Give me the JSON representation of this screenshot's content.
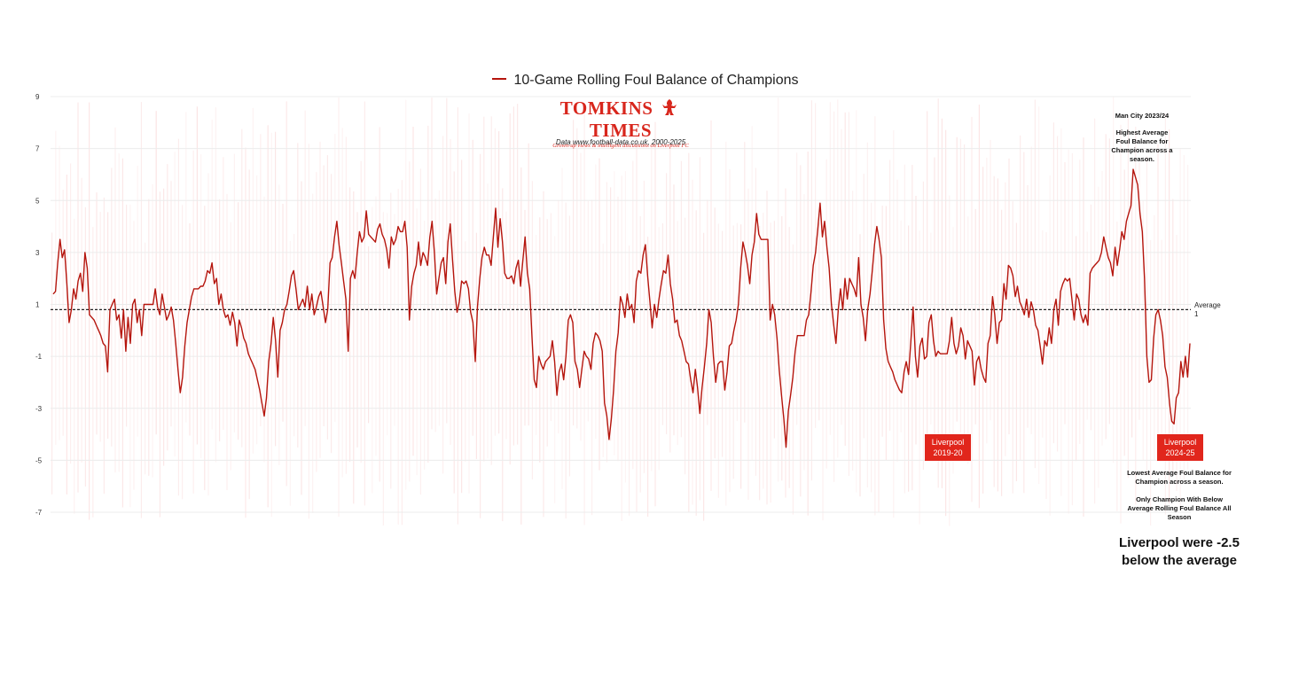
{
  "chart_data": {
    "type": "line",
    "legend": "10-Game Rolling Foul Balance of Champions",
    "ylim": [
      -7.5,
      9
    ],
    "yticks": [
      9,
      7,
      5,
      3,
      1,
      -1,
      -3,
      -5,
      -7
    ],
    "average": 0.8,
    "average_label": "Average",
    "average_value_label": "1",
    "colors": {
      "line": "#b5150d",
      "bars": "#fbe2e2",
      "badge": "#e1261c"
    },
    "series": [
      {
        "values": [
          1.4,
          1.5,
          2.6,
          3.5,
          2.8,
          3.1,
          1.8,
          0.3,
          0.8,
          1.6,
          1.2,
          1.9,
          2.2,
          1.5,
          3.0,
          2.4,
          0.6,
          0.5,
          0.4,
          0.2,
          0.0,
          -0.2,
          -0.5,
          -0.6,
          -1.6,
          0.8,
          1.0,
          1.2,
          0.4,
          0.6,
          -0.3,
          0.8,
          -0.8,
          0.5,
          -0.5,
          1.0,
          1.2,
          0.3,
          0.8,
          -0.2,
          1.0,
          1.0,
          1.0,
          1.0,
          1.0,
          1.6,
          0.9,
          0.6,
          1.4,
          0.9,
          0.4,
          0.6,
          0.9,
          0.4,
          -0.5,
          -1.5,
          -2.4,
          -1.8,
          -0.6,
          0.3,
          0.8,
          1.3,
          1.6,
          1.6,
          1.6,
          1.7,
          1.7,
          1.9,
          2.3,
          2.2,
          2.6,
          1.8,
          2.0,
          1.0,
          1.4,
          0.8,
          0.5,
          0.6,
          0.2,
          0.7,
          0.3,
          -0.6,
          0.4,
          0.1,
          -0.3,
          -0.5,
          -0.9,
          -1.1,
          -1.3,
          -1.5,
          -1.9,
          -2.3,
          -2.8,
          -3.3,
          -2.6,
          -1.2,
          -0.5,
          0.5,
          -0.4,
          -1.8,
          0.0,
          0.3,
          0.8,
          1.0,
          1.5,
          2.1,
          2.3,
          1.6,
          0.8,
          1.0,
          1.2,
          0.9,
          1.7,
          0.8,
          1.4,
          0.6,
          0.9,
          1.3,
          1.5,
          0.9,
          0.3,
          0.8,
          2.6,
          2.8,
          3.6,
          4.2,
          3.3,
          2.6,
          1.9,
          1.2,
          -0.8,
          2.0,
          2.3,
          2.0,
          3.0,
          3.8,
          3.4,
          3.6,
          4.6,
          3.7,
          3.6,
          3.5,
          3.4,
          3.9,
          4.1,
          3.7,
          3.5,
          3.1,
          2.4,
          3.6,
          3.3,
          3.5,
          4.0,
          3.8,
          3.8,
          4.2,
          3.2,
          0.4,
          1.7,
          2.2,
          2.5,
          3.4,
          2.5,
          3.0,
          2.8,
          2.5,
          3.6,
          4.2,
          3.0,
          1.4,
          2.0,
          2.6,
          2.8,
          1.8,
          3.4,
          4.1,
          2.7,
          1.5,
          0.7,
          1.1,
          1.9,
          1.8,
          1.9,
          1.6,
          0.7,
          0.3,
          -1.2,
          0.9,
          2.0,
          2.8,
          3.2,
          2.9,
          2.9,
          2.5,
          3.6,
          4.7,
          3.2,
          4.3,
          3.4,
          2.2,
          2.0,
          2.0,
          2.1,
          1.8,
          2.4,
          2.7,
          1.7,
          2.7,
          3.6,
          2.2,
          1.6,
          -0.2,
          -1.9,
          -2.2,
          -1.0,
          -1.3,
          -1.5,
          -1.2,
          -1.1,
          -1.0,
          -0.4,
          -1.2,
          -2.5,
          -1.6,
          -1.3,
          -1.9,
          -1.0,
          0.4,
          0.6,
          0.3,
          -1.2,
          -1.5,
          -2.2,
          -1.5,
          -0.8,
          -1.0,
          -1.1,
          -1.5,
          -0.5,
          -0.1,
          -0.2,
          -0.4,
          -0.8,
          -2.8,
          -3.3,
          -4.2,
          -3.4,
          -2.3,
          -0.8,
          -0.1,
          1.3,
          1.0,
          0.5,
          1.4,
          0.8,
          1.0,
          0.3,
          1.9,
          2.3,
          2.2,
          2.9,
          3.3,
          2.1,
          1.1,
          0.1,
          1.0,
          0.5,
          1.2,
          1.8,
          2.3,
          2.2,
          2.9,
          1.8,
          1.2,
          0.3,
          0.4,
          -0.2,
          -0.4,
          -0.8,
          -1.2,
          -1.3,
          -1.9,
          -2.4,
          -1.5,
          -2.2,
          -3.2,
          -2.2,
          -1.4,
          -0.5,
          0.8,
          0.3,
          -1.0,
          -2.0,
          -1.3,
          -1.2,
          -1.2,
          -2.3,
          -1.6,
          -0.6,
          -0.5,
          0.0,
          0.4,
          1.0,
          2.4,
          3.4,
          3.0,
          2.5,
          1.8,
          2.9,
          3.4,
          4.5,
          3.7,
          3.5,
          3.5,
          3.5,
          3.5,
          0.4,
          1.0,
          0.6,
          -0.3,
          -1.5,
          -2.5,
          -3.4,
          -4.5,
          -3.1,
          -2.5,
          -1.8,
          -0.8,
          -0.2,
          -0.2,
          -0.2,
          -0.2,
          0.4,
          0.6,
          1.5,
          2.5,
          3.0,
          3.9,
          4.9,
          3.6,
          4.2,
          3.2,
          2.4,
          1.0,
          0.2,
          -0.5,
          0.8,
          1.6,
          0.8,
          2.0,
          1.2,
          2.0,
          1.8,
          1.6,
          1.3,
          2.8,
          1.0,
          0.5,
          -0.4,
          0.8,
          1.4,
          2.3,
          3.3,
          4.0,
          3.5,
          2.8,
          0.4,
          -0.7,
          -1.2,
          -1.4,
          -1.6,
          -1.9,
          -2.1,
          -2.3,
          -2.4,
          -1.6,
          -1.2,
          -1.7,
          -0.4,
          0.9,
          -1.0,
          -1.8,
          -0.6,
          -0.3,
          -1.1,
          -1.0,
          0.3,
          0.6,
          -0.4,
          -1.0,
          -0.8,
          -0.9,
          -0.9,
          -0.9,
          -0.9,
          -0.4,
          0.5,
          -0.5,
          -0.9,
          -0.6,
          0.1,
          -0.2,
          -1.1,
          -0.4,
          -0.6,
          -0.8,
          -2.1,
          -1.2,
          -1.0,
          -1.5,
          -1.8,
          -2.0,
          -0.5,
          -0.2,
          1.3,
          0.6,
          -0.5,
          0.3,
          0.4,
          1.8,
          1.2,
          2.5,
          2.4,
          2.1,
          1.3,
          1.7,
          1.1,
          0.9,
          0.6,
          1.2,
          0.5,
          1.1,
          0.8,
          0.2,
          0.0,
          -0.6,
          -1.3,
          -0.4,
          -0.6,
          0.1,
          -0.5,
          0.8,
          1.2,
          0.2,
          1.5,
          1.8,
          2.0,
          1.9,
          2.0,
          1.2,
          0.4,
          1.4,
          1.2,
          0.6,
          0.3,
          0.6,
          0.2,
          2.2,
          2.4,
          2.5,
          2.6,
          2.7,
          3.0,
          3.6,
          3.2,
          2.8,
          2.6,
          2.1,
          3.2,
          2.5,
          3.1,
          3.8,
          3.5,
          4.2,
          4.5,
          4.8,
          6.2,
          5.9,
          5.6,
          4.5,
          3.8,
          2.0,
          -1.0,
          -2.0,
          -1.9,
          -0.3,
          0.6,
          0.8,
          0.4,
          -0.2,
          -1.4,
          -1.8,
          -2.8,
          -3.5,
          -3.6,
          -2.6,
          -2.4,
          -1.2,
          -1.8,
          -1.0,
          -1.8,
          -0.5
        ]
      }
    ],
    "annotations": {
      "man_city": [
        "Man City 2023/24",
        "Highest Average Foul Balance for Champion across a season."
      ],
      "liverpool_2019": "Liverpool 2019-20",
      "liverpool_2024": "Liverpool 2024-25",
      "lowest": "Lowest Average Foul Balance for Champion across a season.",
      "only": "Only Champion With Below Average Rolling Foul Balance All Season",
      "callout": "Liverpool were -2.5 below the average"
    }
  },
  "brand": {
    "name_left": "TOMKINS",
    "name_right": "TIMES",
    "tagline": "Grown-up views & intelligent discussions on Liverpool FC"
  },
  "source": "Data www.football-data.co.uk, 2000-2025"
}
